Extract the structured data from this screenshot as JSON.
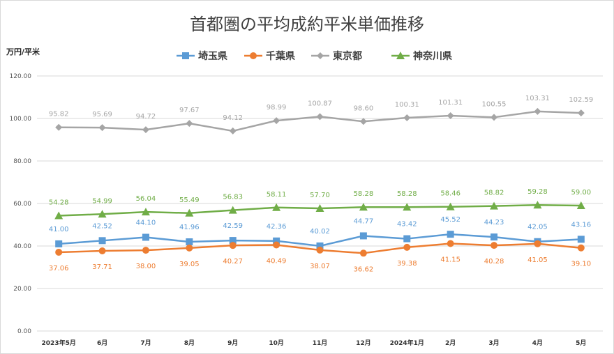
{
  "chart_data": {
    "type": "line",
    "title": "首都圏の平均成約平米単価推移",
    "ylabel": "万円/平米",
    "xlabel": "",
    "categories": [
      "2023年5月",
      "6月",
      "7月",
      "8月",
      "9月",
      "10月",
      "11月",
      "12月",
      "2024年1月",
      "2月",
      "3月",
      "4月",
      "5月"
    ],
    "ylim": [
      0,
      120
    ],
    "y_ticks": [
      "0.00",
      "20.00",
      "40.00",
      "60.00",
      "80.00",
      "100.00",
      "120.00"
    ],
    "grid": true,
    "legend_position": "top",
    "series": [
      {
        "name": "埼玉県",
        "color": "#5b9bd5",
        "marker": "square",
        "values": [
          41.0,
          42.52,
          44.1,
          41.96,
          42.59,
          42.36,
          40.02,
          44.77,
          43.42,
          45.52,
          44.23,
          42.05,
          43.16
        ],
        "labels": [
          "41.00",
          "42.52",
          "44.10",
          "41.96",
          "42.59",
          "42.36",
          "40.02",
          "44.77",
          "43.42",
          "45.52",
          "44.23",
          "42.05",
          "43.16"
        ]
      },
      {
        "name": "千葉県",
        "color": "#ed7d31",
        "marker": "circle",
        "values": [
          37.06,
          37.71,
          38.0,
          39.05,
          40.27,
          40.49,
          38.07,
          36.62,
          39.38,
          41.15,
          40.28,
          41.05,
          39.1
        ],
        "labels": [
          "37.06",
          "37.71",
          "38.00",
          "39.05",
          "40.27",
          "40.49",
          "38.07",
          "36.62",
          "39.38",
          "41.15",
          "40.28",
          "41.05",
          "39.10"
        ]
      },
      {
        "name": "東京都",
        "color": "#a5a5a5",
        "marker": "diamond",
        "values": [
          95.82,
          95.69,
          94.72,
          97.67,
          94.12,
          98.99,
          100.87,
          98.6,
          100.31,
          101.31,
          100.55,
          103.31,
          102.59
        ],
        "labels": [
          "95.82",
          "95.69",
          "94.72",
          "97.67",
          "94.12",
          "98.99",
          "100.87",
          "98.60",
          "100.31",
          "101.31",
          "100.55",
          "103.31",
          "102.59"
        ]
      },
      {
        "name": "神奈川県",
        "color": "#70ad47",
        "marker": "triangle",
        "values": [
          54.28,
          54.99,
          56.04,
          55.49,
          56.83,
          58.11,
          57.7,
          58.28,
          58.28,
          58.46,
          58.82,
          59.28,
          59.0
        ],
        "labels": [
          "54.28",
          "54.99",
          "56.04",
          "55.49",
          "56.83",
          "58.11",
          "57.70",
          "58.28",
          "58.28",
          "58.46",
          "58.82",
          "59.28",
          "59.00"
        ]
      }
    ]
  }
}
